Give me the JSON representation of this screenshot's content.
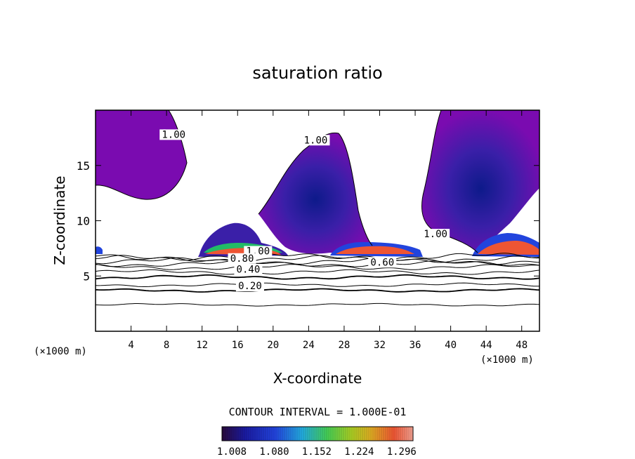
{
  "chart_data": {
    "type": "heatmap",
    "title": "saturation ratio",
    "xlabel": "X-coordinate",
    "ylabel": "Z-coordinate",
    "x_units_left": "(×1000 m)",
    "x_units_right": "(×1000 m)",
    "xlim": [
      0,
      50
    ],
    "ylim": [
      0,
      20
    ],
    "x_ticks": [
      "4",
      "8",
      "12",
      "16",
      "20",
      "24",
      "28",
      "32",
      "36",
      "40",
      "44",
      "48"
    ],
    "y_ticks": [
      "5",
      "10",
      "15"
    ],
    "contour_interval_text": "CONTOUR INTERVAL = 1.000E-01",
    "colorbar": {
      "range": [
        1.008,
        1.332
      ],
      "tick_labels": [
        "1.008",
        "1.080",
        "1.152",
        "1.224",
        "1.296"
      ]
    },
    "contour_labels": [
      {
        "text": "1.00",
        "x": 8.8,
        "z": 17.5
      },
      {
        "text": "1.00",
        "x": 24.8,
        "z": 17.0
      },
      {
        "text": "1.00",
        "x": 38.3,
        "z": 8.5
      },
      {
        "text": "1.00",
        "x": 18.3,
        "z": 6.95
      },
      {
        "text": "0.80",
        "x": 16.5,
        "z": 6.3
      },
      {
        "text": "0.60",
        "x": 32.3,
        "z": 5.95
      },
      {
        "text": "0.40",
        "x": 17.2,
        "z": 5.3
      },
      {
        "text": "0.20",
        "x": 17.4,
        "z": 3.8
      }
    ],
    "contour_lines_z": [
      2.4,
      3.7,
      4.2,
      4.9,
      5.35,
      5.8,
      6.1,
      6.35,
      6.55,
      6.75
    ],
    "grid": false,
    "legend": "colorbar bottom-center"
  }
}
